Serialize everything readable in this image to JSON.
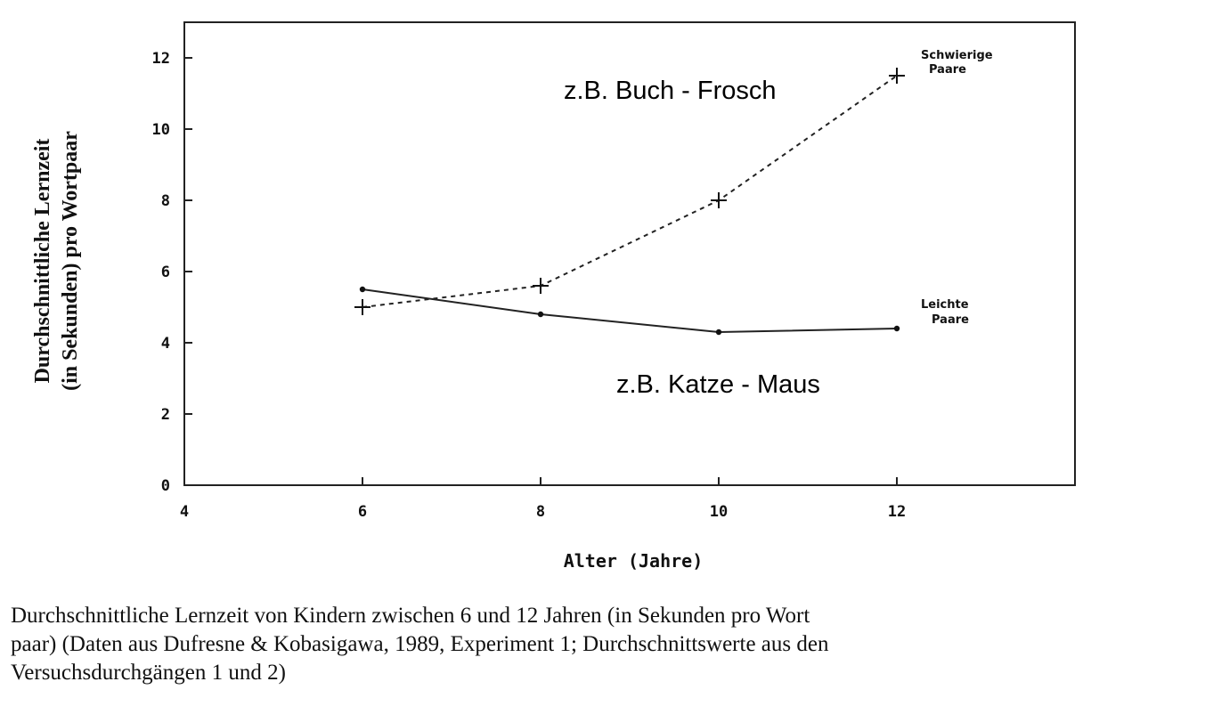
{
  "chart_data": {
    "type": "line",
    "x": [
      6,
      8,
      10,
      12
    ],
    "xlabel": "Alter (Jahre)",
    "ylabel": [
      "Durchschnittliche Lernzeit",
      "(in Sekunden) pro Wortpaar"
    ],
    "xlim": [
      4,
      14
    ],
    "ylim": [
      0,
      13
    ],
    "xticks": [
      "4",
      "6",
      "8",
      "10",
      "12"
    ],
    "yticks": [
      "0",
      "2",
      "4",
      "6",
      "8",
      "10",
      "12"
    ],
    "grid": false,
    "series": [
      {
        "name": [
          "Schwierige",
          "Paare"
        ],
        "style": "dashed",
        "marker": "plus",
        "values": [
          5.0,
          5.6,
          8.0,
          11.5
        ],
        "annotation": "z.B. Buch - Frosch"
      },
      {
        "name": [
          "Leichte",
          "Paare"
        ],
        "style": "solid",
        "marker": "dot",
        "values": [
          5.5,
          4.8,
          4.3,
          4.4
        ],
        "annotation": "z.B. Katze - Maus"
      }
    ]
  },
  "caption": [
    "Durchschnittliche Lernzeit von Kindern zwischen 6 und 12 Jahren (in Sekunden pro Wort",
    "paar) (Daten aus Dufresne & Kobasigawa, 1989, Experiment 1; Durchschnittswerte aus den",
    "Versuchsdurchgängen 1 und 2)"
  ]
}
